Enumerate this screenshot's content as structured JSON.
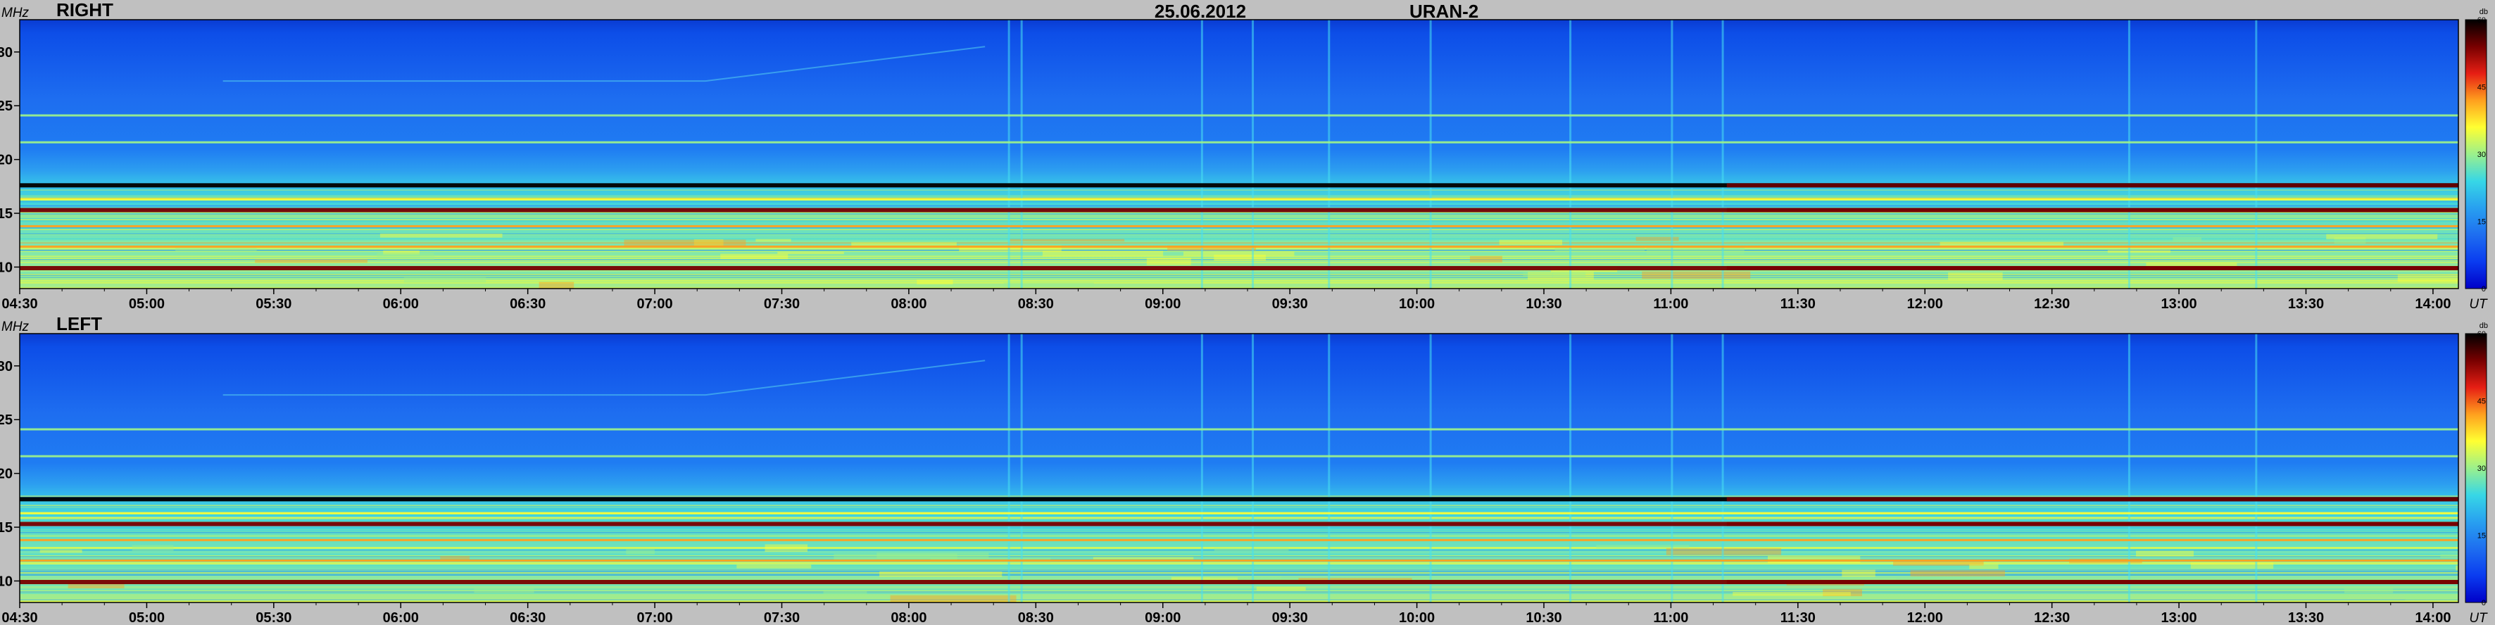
{
  "header": {
    "date": "25.06.2012",
    "instrument": "URAN-2"
  },
  "colors": {
    "background": "#c0c0c0",
    "palette": [
      "#0000c8",
      "#0a3cf0",
      "#1e6ef0",
      "#28a0f0",
      "#37d7e6",
      "#9bf08c",
      "#ffff32",
      "#ffa01e",
      "#e61e14",
      "#780000",
      "#000000"
    ]
  },
  "chart_data": [
    {
      "type": "heatmap",
      "title": "RIGHT",
      "ylabel": "MHz",
      "xlabel": "UT",
      "xticks": [
        "04:30",
        "05:00",
        "05:30",
        "06:00",
        "06:30",
        "07:00",
        "07:30",
        "08:00",
        "08:30",
        "09:00",
        "09:30",
        "10:00",
        "10:30",
        "11:00",
        "11:30",
        "12:00",
        "12:30",
        "13:00",
        "13:30",
        "14:00"
      ],
      "yticks": [
        "10",
        "15",
        "20",
        "25",
        "30"
      ],
      "xlim_hours": [
        4.5,
        14.1
      ],
      "ylim_mhz": [
        8,
        33
      ],
      "colorbar": {
        "label": "db",
        "ticks": [
          "0",
          "15",
          "30",
          "45",
          "60"
        ],
        "range": [
          0,
          60
        ]
      },
      "features": {
        "background_db": 5,
        "lower_band_db": 28,
        "horizontal_lines_mhz": [
          {
            "f": 9.9,
            "db": 52
          },
          {
            "f": 11.9,
            "db": 40
          },
          {
            "f": 13.8,
            "db": 40
          },
          {
            "f": 15.3,
            "db": 55
          },
          {
            "f": 16.3,
            "db": 34
          },
          {
            "f": 17.6,
            "db": 58
          },
          {
            "f": 21.6,
            "db": 30
          },
          {
            "f": 24.1,
            "db": 30
          }
        ],
        "vertical_bursts_ut": [
          8.39,
          8.44,
          9.15,
          9.35,
          9.65,
          10.05,
          10.6,
          11.0,
          11.2,
          12.8,
          13.3
        ]
      }
    },
    {
      "type": "heatmap",
      "title": "LEFT",
      "ylabel": "MHz",
      "xlabel": "UT",
      "xticks": [
        "04:30",
        "05:00",
        "05:30",
        "06:00",
        "06:30",
        "07:00",
        "07:30",
        "08:00",
        "08:30",
        "09:00",
        "09:30",
        "10:00",
        "10:30",
        "11:00",
        "11:30",
        "12:00",
        "12:30",
        "13:00",
        "13:30",
        "14:00"
      ],
      "yticks": [
        "10",
        "15",
        "20",
        "25",
        "30"
      ],
      "xlim_hours": [
        4.5,
        14.1
      ],
      "ylim_mhz": [
        8,
        33
      ],
      "colorbar": {
        "label": "db",
        "ticks": [
          "0",
          "15",
          "30",
          "45",
          "60"
        ],
        "range": [
          0,
          60
        ]
      },
      "features": {
        "background_db": 5,
        "lower_band_db": 28,
        "horizontal_lines_mhz": [
          {
            "f": 9.9,
            "db": 54
          },
          {
            "f": 11.9,
            "db": 40
          },
          {
            "f": 13.8,
            "db": 42
          },
          {
            "f": 15.3,
            "db": 56
          },
          {
            "f": 16.3,
            "db": 36
          },
          {
            "f": 17.6,
            "db": 58
          },
          {
            "f": 21.6,
            "db": 30
          },
          {
            "f": 24.1,
            "db": 30
          }
        ],
        "vertical_bursts_ut": [
          8.39,
          8.44,
          9.15,
          9.35,
          9.65,
          10.05,
          10.6,
          11.0,
          11.2,
          12.8,
          13.3
        ]
      }
    }
  ]
}
